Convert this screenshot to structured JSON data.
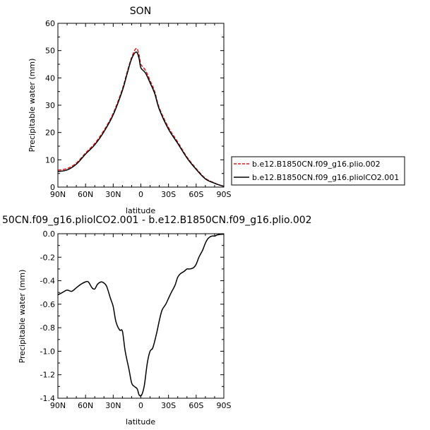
{
  "chart_data": [
    {
      "type": "line",
      "title": "SON",
      "xlabel": "latitude",
      "ylabel": "Precipitable water (mm)",
      "xlim": [
        90,
        -90
      ],
      "ylim": [
        0,
        60
      ],
      "x_ticks": [
        90,
        60,
        30,
        0,
        -30,
        -60,
        -90
      ],
      "x_tick_labels": [
        "90N",
        "60N",
        "30N",
        "0",
        "30S",
        "60S",
        "90S"
      ],
      "y_ticks": [
        0,
        10,
        20,
        30,
        40,
        50,
        60
      ],
      "y_tick_labels": [
        "0",
        "10",
        "20",
        "30",
        "40",
        "50",
        "60"
      ],
      "legend_position": "right",
      "series": [
        {
          "name": "b.e12.B1850CN.f09_g16.plio.002",
          "color": "#e8141b",
          "dash": "dashed",
          "x": [
            90,
            80,
            70,
            60,
            50,
            40,
            30,
            20,
            15,
            10,
            5,
            2,
            0,
            -5,
            -10,
            -15,
            -20,
            -30,
            -40,
            -50,
            -60,
            -70,
            -80,
            -85,
            -90
          ],
          "y": [
            6.2,
            6.8,
            8.8,
            12.5,
            16,
            20.8,
            27,
            36,
            42,
            47.5,
            50.8,
            48.5,
            45,
            42.8,
            39,
            35,
            29,
            21.8,
            16.5,
            11,
            6.8,
            3.2,
            1.5,
            0.8,
            0.3
          ]
        },
        {
          "name": "b.e12.B1850CN.f09_g16.pliolCO2.001",
          "color": "#000000",
          "dash": "solid",
          "x": [
            90,
            80,
            70,
            60,
            50,
            40,
            30,
            20,
            15,
            10,
            5,
            2,
            0,
            -5,
            -10,
            -15,
            -20,
            -30,
            -40,
            -50,
            -60,
            -70,
            -80,
            -85,
            -90
          ],
          "y": [
            5.7,
            6.3,
            8.4,
            12.1,
            15.5,
            20.3,
            26.5,
            35.4,
            41.4,
            47.0,
            49.5,
            47.2,
            43.7,
            41.8,
            38.2,
            34.3,
            28.5,
            21.2,
            16.0,
            10.7,
            6.5,
            3.0,
            1.4,
            0.8,
            0.3
          ]
        }
      ]
    },
    {
      "type": "line",
      "title": "50CN.f09_g16.pliolCO2.001 - b.e12.B1850CN.f09_g16.plio.002",
      "xlabel": "latitude",
      "ylabel": "Precipitable water (mm)",
      "xlim": [
        90,
        -90
      ],
      "ylim": [
        -1.4,
        0.0
      ],
      "x_ticks": [
        90,
        60,
        30,
        0,
        -30,
        -60,
        -90
      ],
      "x_tick_labels": [
        "90N",
        "60N",
        "30N",
        "0",
        "30S",
        "60S",
        "90S"
      ],
      "y_ticks": [
        0.0,
        -0.2,
        -0.4,
        -0.6,
        -0.8,
        -1.0,
        -1.2,
        -1.4
      ],
      "y_tick_labels": [
        "0.0",
        "-0.2",
        "-0.4",
        "-0.6",
        "-0.8",
        "-1.0",
        "-1.2",
        "-1.4"
      ],
      "series": [
        {
          "color": "#000000",
          "x": [
            90,
            85,
            80,
            75,
            70,
            65,
            60,
            57,
            53,
            50,
            47,
            43,
            40,
            37,
            33,
            30,
            27,
            23,
            20,
            17,
            13,
            10,
            7,
            4,
            2,
            0,
            -2,
            -4,
            -7,
            -10,
            -13,
            -17,
            -20,
            -23,
            -27,
            -30,
            -33,
            -37,
            -40,
            -43,
            -47,
            -50,
            -53,
            -57,
            -60,
            -63,
            -67,
            -70,
            -73,
            -77,
            -80,
            -83,
            -87,
            -90
          ],
          "y": [
            -0.52,
            -0.5,
            -0.48,
            -0.49,
            -0.46,
            -0.43,
            -0.41,
            -0.41,
            -0.46,
            -0.47,
            -0.43,
            -0.41,
            -0.42,
            -0.45,
            -0.55,
            -0.62,
            -0.75,
            -0.82,
            -0.83,
            -1.0,
            -1.15,
            -1.27,
            -1.3,
            -1.32,
            -1.37,
            -1.38,
            -1.35,
            -1.28,
            -1.1,
            -1.0,
            -0.97,
            -0.85,
            -0.74,
            -0.65,
            -0.6,
            -0.55,
            -0.5,
            -0.44,
            -0.37,
            -0.34,
            -0.32,
            -0.3,
            -0.3,
            -0.29,
            -0.26,
            -0.2,
            -0.14,
            -0.08,
            -0.04,
            -0.02,
            -0.02,
            -0.01,
            -0.005,
            -0.005
          ]
        }
      ]
    }
  ]
}
